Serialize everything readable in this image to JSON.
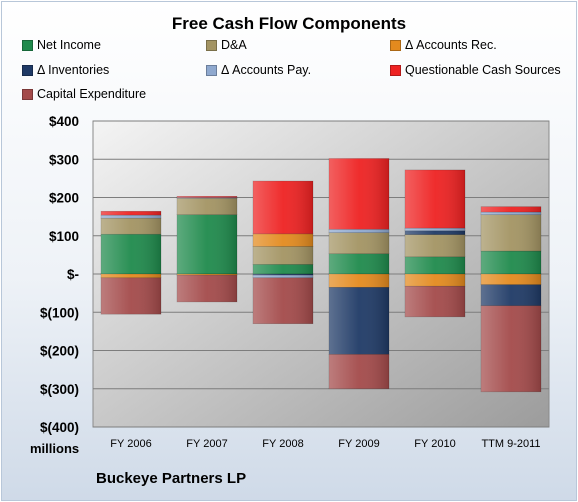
{
  "chart_data": {
    "type": "bar",
    "stacked": true,
    "title": "Free Cash Flow Components",
    "categories": [
      "FY 2006",
      "FY 2007",
      "FY 2008",
      "FY 2009",
      "FY 2010",
      "TTM 9-2011"
    ],
    "ylim": [
      -400,
      400
    ],
    "yticks": [
      {
        "value": 400,
        "label": "$400"
      },
      {
        "value": 300,
        "label": "$300"
      },
      {
        "value": 200,
        "label": "$200"
      },
      {
        "value": 100,
        "label": "$100"
      },
      {
        "value": 0,
        "label": "$-"
      },
      {
        "value": -100,
        "label": "$(100)"
      },
      {
        "value": -200,
        "label": "$(200)"
      },
      {
        "value": -300,
        "label": "$(300)"
      },
      {
        "value": -400,
        "label": "$(400)"
      }
    ],
    "grid": true,
    "legend_position": "top",
    "unit_label": "millions",
    "series": [
      {
        "name": "Net Income",
        "color": "#1f8a4c",
        "values": [
          104,
          155,
          25,
          53,
          45,
          60
        ]
      },
      {
        "name": "D&A",
        "color": "#a39463",
        "values": [
          42,
          43,
          47,
          55,
          58,
          95
        ]
      },
      {
        "name": "Δ Accounts Rec.",
        "color": "#e38a1e",
        "values": [
          -10,
          -3,
          33,
          -35,
          -32,
          -28
        ]
      },
      {
        "name": "Δ Inventories",
        "color": "#1f3a66",
        "values": [
          0,
          0,
          -3,
          -175,
          10,
          -55
        ]
      },
      {
        "name": "Δ Accounts Pay.",
        "color": "#8fa9cf",
        "values": [
          8,
          2,
          -7,
          9,
          7,
          7
        ]
      },
      {
        "name": "Questionable Cash Sources",
        "color": "#ee2222",
        "values": [
          10,
          3,
          138,
          185,
          152,
          14
        ]
      },
      {
        "name": "Capital Expenditure",
        "color": "#a34a4a",
        "values": [
          -95,
          -70,
          -120,
          -90,
          -80,
          -225
        ]
      }
    ]
  },
  "footer": {
    "company": "Buckeye Partners LP"
  }
}
